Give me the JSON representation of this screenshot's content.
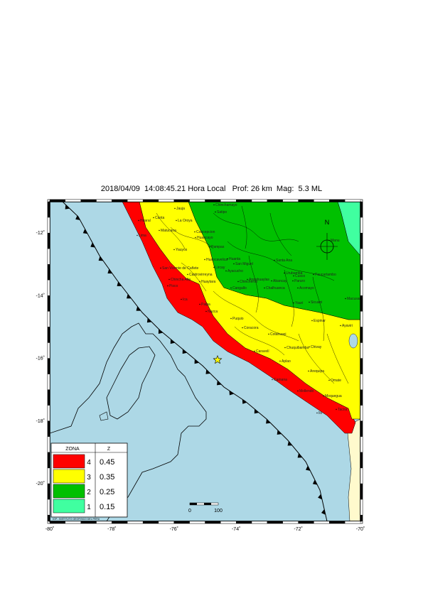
{
  "header": {
    "title": "2018/04/09  14:08:45.21 Hora Local   Prof: 26 km  Mag:  5.3 ML"
  },
  "map": {
    "x_ticks": [
      "-80˚",
      "-78˚",
      "-76˚",
      "-74˚",
      "-72˚",
      "-70˚"
    ],
    "y_ticks": [
      "-12˚",
      "-14˚",
      "-16˚",
      "-18˚",
      "-20˚"
    ],
    "north_label": "N",
    "scale": {
      "start": "0",
      "end": "100"
    },
    "colors": {
      "ocean": "#add8e6",
      "zone4": "#ff0000",
      "zone3": "#ffff00",
      "zone2": "#00c000",
      "zone1": "#40ffa0",
      "land_outside": "#fffacd",
      "epicenter": "#ffff00"
    },
    "places": [
      "Chinchamayo",
      "Satipo",
      "Jauja",
      "Canta",
      "La Oroya",
      "Huaral",
      "Matucana",
      "Concepcion",
      "Huancayo",
      "Yauyos",
      "Pampas",
      "Lima",
      "Huancavelica",
      "San Vicente de Cañete",
      "Castrovirreyna",
      "Lircay",
      "Chincha Alta",
      "Huanta",
      "Ayacucho",
      "San Miguel",
      "Santa Ana",
      "Andahuaylas",
      "Abancay",
      "Cusco",
      "Urubamba",
      "Paucartambo",
      "Pisco",
      "Ica",
      "Huaytara",
      "Chincheros",
      "Cangallo",
      "Chalhuanca",
      "Acomayo",
      "Paruro",
      "Yauri",
      "Sicuani",
      "Nazca",
      "Puquio",
      "Coracora",
      "Palpa",
      "Cotahuasi",
      "Chivay",
      "Espinar",
      "Ayaviri",
      "Arequipa",
      "Camana",
      "Chuquibamba",
      "Aplao",
      "Moquegua",
      "Omate",
      "Ilo",
      "Mollendo",
      "Tacna",
      "Macusani",
      "Manu",
      "Caravelí"
    ],
    "epicenter": {
      "lon": -74.6,
      "lat": -16.05
    },
    "footer_credit": "IGP - INSTITUTO GEOFISICO DEL PERU"
  },
  "legend": {
    "header_zone": "ZONA",
    "header_z": "Z",
    "rows": [
      {
        "zone": "4",
        "z": "0.45",
        "color": "#ff0000"
      },
      {
        "zone": "3",
        "z": "0.35",
        "color": "#ffff00"
      },
      {
        "zone": "2",
        "z": "0.25",
        "color": "#00c000"
      },
      {
        "zone": "1",
        "z": "0.15",
        "color": "#40ffa0"
      }
    ]
  }
}
